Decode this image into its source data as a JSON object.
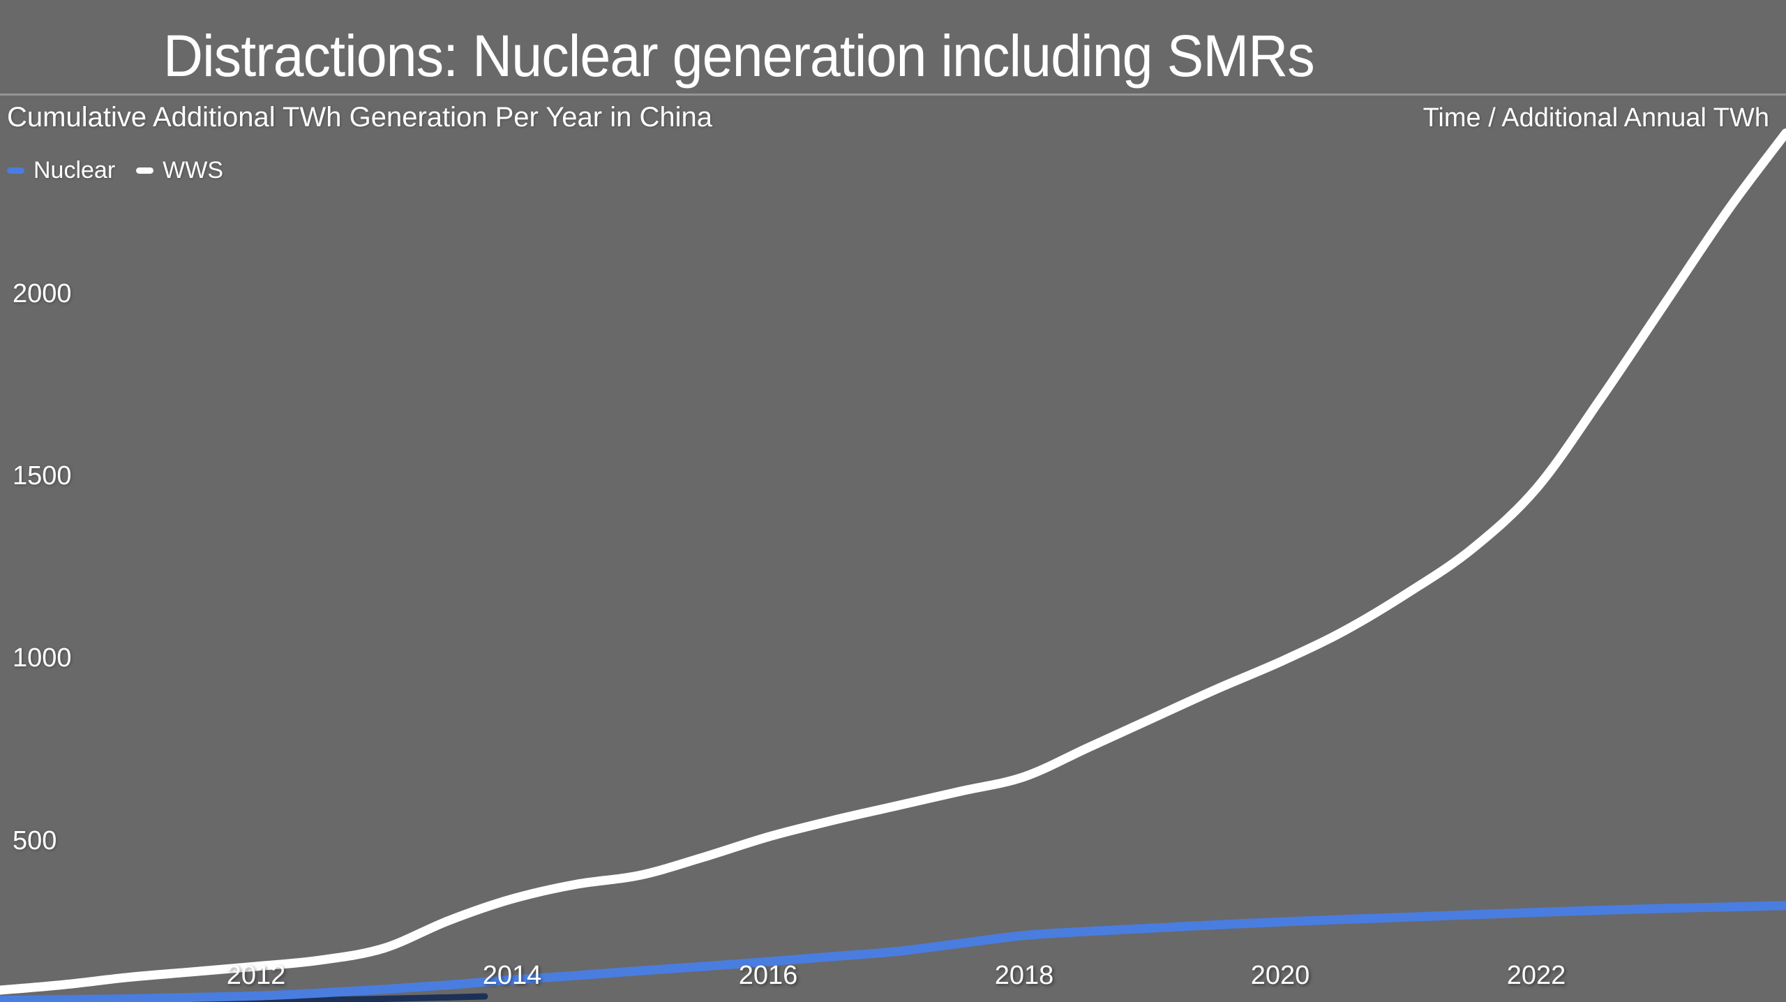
{
  "slide": {
    "title": "Distractions: Nuclear generation including SMRs",
    "subtitle": "Cumulative Additional TWh Generation Per Year in China",
    "axis_note": "Time / Additional Annual TWh"
  },
  "colors": {
    "background": "#696969",
    "divider": "rgba(255,255,255,0.30)",
    "nuclear_line": "#4a7de0",
    "wws_line": "#ffffff",
    "bottom_edge_artifact": "#1d3157"
  },
  "chart_data": {
    "type": "line",
    "title": "Cumulative Additional TWh Generation Per Year in China",
    "xlabel": "Time",
    "ylabel": "Additional Annual TWh",
    "grid": false,
    "legend_position": "top-left",
    "xlim": [
      2010,
      2023.95
    ],
    "ylim": [
      0,
      2750
    ],
    "xticks": [
      2012,
      2014,
      2016,
      2018,
      2020,
      2022
    ],
    "yticks": [
      500,
      1000,
      1500,
      2000
    ],
    "x": [
      2010,
      2010.5,
      2011,
      2011.5,
      2012,
      2012.5,
      2013,
      2013.5,
      2014,
      2014.5,
      2015,
      2015.5,
      2016,
      2016.5,
      2017,
      2017.5,
      2018,
      2018.5,
      2019,
      2019.5,
      2020,
      2020.5,
      2021,
      2021.5,
      2022,
      2022.5,
      2023,
      2023.5,
      2023.95
    ],
    "series": [
      {
        "name": "Nuclear",
        "color": "#4a7de0",
        "values": [
          62,
          64,
          66,
          70,
          74,
          82,
          92,
          104,
          118,
          130,
          143,
          155,
          168,
          182,
          196,
          218,
          240,
          251,
          260,
          269,
          277,
          284,
          290,
          297,
          303,
          309,
          314,
          318,
          322
        ]
      },
      {
        "name": "WWS",
        "color": "#ffffff",
        "values": [
          90,
          105,
          125,
          140,
          155,
          172,
          205,
          280,
          340,
          380,
          405,
          455,
          510,
          555,
          595,
          635,
          675,
          755,
          835,
          915,
          990,
          1075,
          1180,
          1300,
          1465,
          1710,
          1970,
          2230,
          2440
        ]
      }
    ]
  }
}
